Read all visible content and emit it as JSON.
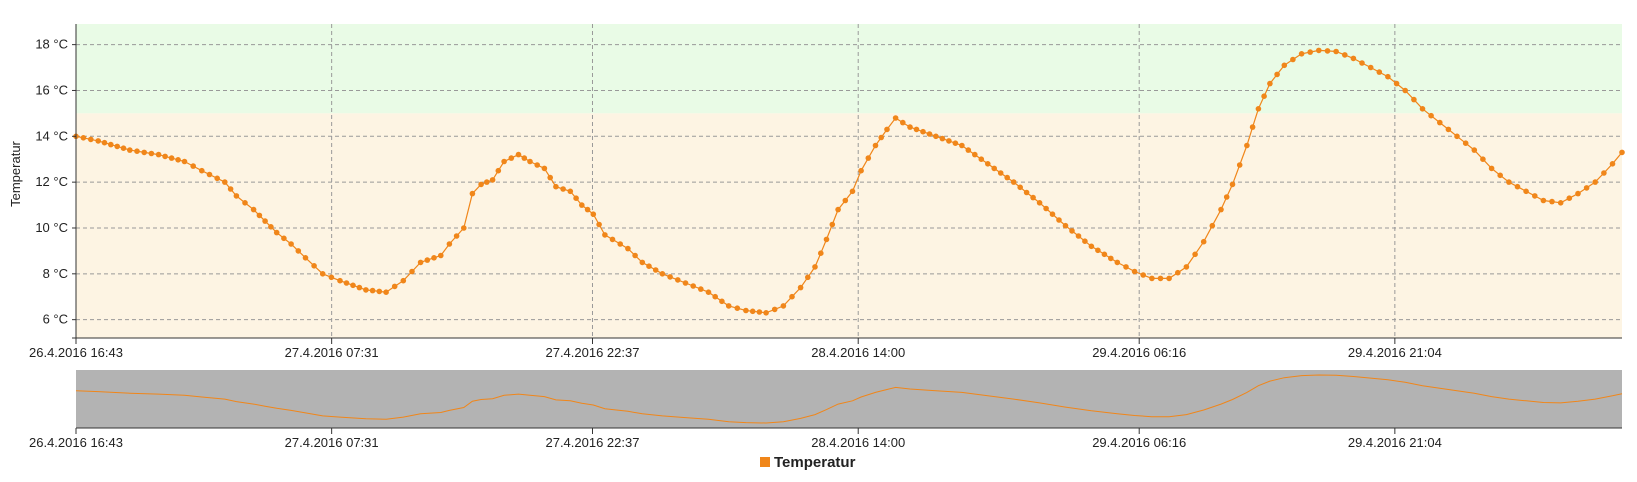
{
  "chart_data": {
    "type": "line",
    "ylabel": "Temperatur",
    "y_unit": " °C",
    "ylim": [
      5.2,
      18.9
    ],
    "yticks": [
      6,
      8,
      10,
      12,
      14,
      16,
      18
    ],
    "xlim": [
      "2016-04-26T16:43",
      "2016-04-30T10:13"
    ],
    "xticks": [
      {
        "t": "2016-04-26T16:43",
        "label": "26.4.2016 16:43"
      },
      {
        "t": "2016-04-27T07:31",
        "label": "27.4.2016 07:31"
      },
      {
        "t": "2016-04-27T22:37",
        "label": "27.4.2016 22:37"
      },
      {
        "t": "2016-04-28T14:00",
        "label": "28.4.2016 14:00"
      },
      {
        "t": "2016-04-29T06:16",
        "label": "29.4.2016 06:16"
      },
      {
        "t": "2016-04-29T21:04",
        "label": "29.4.2016 21:04"
      }
    ],
    "bands": [
      {
        "from": 15,
        "to": 18.9,
        "color": "#e9fbe6"
      },
      {
        "from": 5.2,
        "to": 15,
        "color": "#fdf4e3"
      }
    ],
    "grid": true,
    "legend": {
      "position": "bottom-center"
    },
    "series": [
      {
        "name": "Temperatur",
        "color": "#f0861a",
        "points": [
          [
            "2016-04-26T16:43",
            14.0
          ],
          [
            "2016-04-26T18:00",
            13.8
          ],
          [
            "2016-04-26T19:50",
            13.4
          ],
          [
            "2016-04-26T21:30",
            13.2
          ],
          [
            "2016-04-26T23:00",
            12.9
          ],
          [
            "2016-04-27T00:00",
            12.5
          ],
          [
            "2016-04-27T01:20",
            12.0
          ],
          [
            "2016-04-27T02:00",
            11.4
          ],
          [
            "2016-04-27T03:00",
            10.8
          ],
          [
            "2016-04-27T03:40",
            10.3
          ],
          [
            "2016-04-27T04:20",
            9.8
          ],
          [
            "2016-04-27T05:10",
            9.3
          ],
          [
            "2016-04-27T06:00",
            8.7
          ],
          [
            "2016-04-27T07:00",
            8.0
          ],
          [
            "2016-04-27T08:00",
            7.7
          ],
          [
            "2016-04-27T09:30",
            7.3
          ],
          [
            "2016-04-27T10:40",
            7.2
          ],
          [
            "2016-04-27T11:40",
            7.7
          ],
          [
            "2016-04-27T12:40",
            8.5
          ],
          [
            "2016-04-27T13:50",
            8.8
          ],
          [
            "2016-04-27T14:20",
            9.3
          ],
          [
            "2016-04-27T15:10",
            10.0
          ],
          [
            "2016-04-27T15:40",
            11.5
          ],
          [
            "2016-04-27T16:10",
            11.9
          ],
          [
            "2016-04-27T16:50",
            12.1
          ],
          [
            "2016-04-27T17:30",
            12.9
          ],
          [
            "2016-04-27T18:20",
            13.2
          ],
          [
            "2016-04-27T19:00",
            12.9
          ],
          [
            "2016-04-27T19:50",
            12.6
          ],
          [
            "2016-04-27T20:30",
            11.8
          ],
          [
            "2016-04-27T21:20",
            11.6
          ],
          [
            "2016-04-27T22:00",
            11.0
          ],
          [
            "2016-04-27T22:40",
            10.6
          ],
          [
            "2016-04-27T23:20",
            9.7
          ],
          [
            "2016-04-28T00:40",
            9.1
          ],
          [
            "2016-04-28T01:30",
            8.5
          ],
          [
            "2016-04-28T02:40",
            8.0
          ],
          [
            "2016-04-28T04:00",
            7.6
          ],
          [
            "2016-04-28T05:20",
            7.2
          ],
          [
            "2016-04-28T06:30",
            6.6
          ],
          [
            "2016-04-28T07:30",
            6.4
          ],
          [
            "2016-04-28T08:40",
            6.3
          ],
          [
            "2016-04-28T09:40",
            6.6
          ],
          [
            "2016-04-28T10:40",
            7.4
          ],
          [
            "2016-04-28T11:30",
            8.3
          ],
          [
            "2016-04-28T12:10",
            9.5
          ],
          [
            "2016-04-28T12:50",
            10.8
          ],
          [
            "2016-04-28T13:40",
            11.6
          ],
          [
            "2016-04-28T14:10",
            12.5
          ],
          [
            "2016-04-28T15:00",
            13.6
          ],
          [
            "2016-04-28T15:40",
            14.3
          ],
          [
            "2016-04-28T16:10",
            14.8
          ],
          [
            "2016-04-28T17:00",
            14.4
          ],
          [
            "2016-04-28T18:30",
            14.0
          ],
          [
            "2016-04-28T20:00",
            13.6
          ],
          [
            "2016-04-28T21:30",
            12.8
          ],
          [
            "2016-04-28T23:00",
            12.0
          ],
          [
            "2016-04-29T00:30",
            11.1
          ],
          [
            "2016-04-29T02:00",
            10.1
          ],
          [
            "2016-04-29T03:30",
            9.2
          ],
          [
            "2016-04-29T05:00",
            8.5
          ],
          [
            "2016-04-29T06:00",
            8.1
          ],
          [
            "2016-04-29T07:00",
            7.8
          ],
          [
            "2016-04-29T08:00",
            7.8
          ],
          [
            "2016-04-29T09:00",
            8.3
          ],
          [
            "2016-04-29T10:00",
            9.4
          ],
          [
            "2016-04-29T11:00",
            10.8
          ],
          [
            "2016-04-29T11:40",
            11.9
          ],
          [
            "2016-04-29T12:30",
            13.6
          ],
          [
            "2016-04-29T13:10",
            15.2
          ],
          [
            "2016-04-29T13:50",
            16.3
          ],
          [
            "2016-04-29T14:40",
            17.1
          ],
          [
            "2016-04-29T15:40",
            17.6
          ],
          [
            "2016-04-29T16:40",
            17.75
          ],
          [
            "2016-04-29T17:40",
            17.7
          ],
          [
            "2016-04-29T18:40",
            17.4
          ],
          [
            "2016-04-29T19:40",
            17.0
          ],
          [
            "2016-04-29T20:40",
            16.6
          ],
          [
            "2016-04-29T21:40",
            16.0
          ],
          [
            "2016-04-29T22:40",
            15.2
          ],
          [
            "2016-04-29T23:40",
            14.6
          ],
          [
            "2016-04-30T00:40",
            14.0
          ],
          [
            "2016-04-30T01:40",
            13.4
          ],
          [
            "2016-04-30T02:40",
            12.6
          ],
          [
            "2016-04-30T03:40",
            12.0
          ],
          [
            "2016-04-30T04:40",
            11.6
          ],
          [
            "2016-04-30T05:40",
            11.2
          ],
          [
            "2016-04-30T06:40",
            11.1
          ],
          [
            "2016-04-30T07:40",
            11.5
          ],
          [
            "2016-04-30T08:40",
            12.0
          ],
          [
            "2016-04-30T09:40",
            12.8
          ],
          [
            "2016-04-30T10:13",
            13.3
          ]
        ]
      }
    ]
  },
  "legend": {
    "label": "Temperatur",
    "color": "#f0861a"
  }
}
